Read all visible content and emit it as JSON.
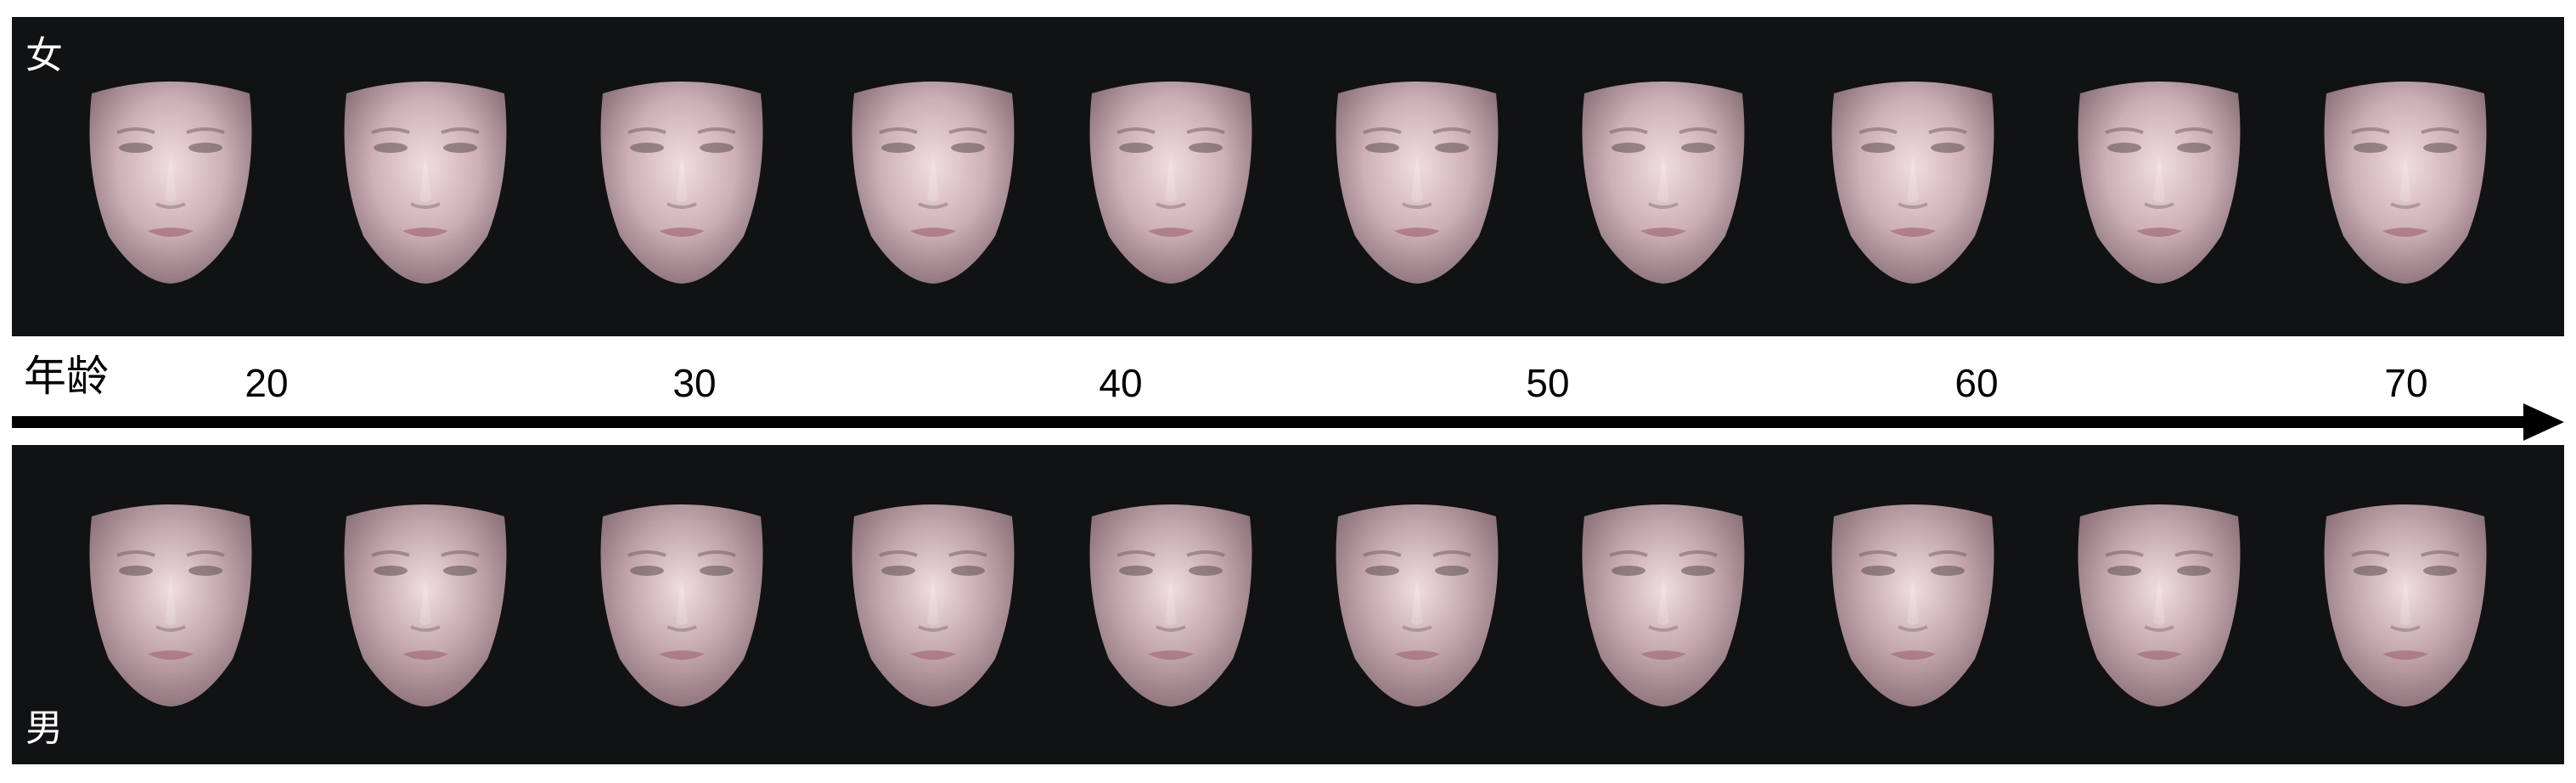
{
  "panels": {
    "female": {
      "label": "女",
      "face_count": 10
    },
    "male": {
      "label": "男",
      "face_count": 10
    }
  },
  "axis": {
    "title": "年龄",
    "ticks": [
      "20",
      "30",
      "40",
      "50",
      "60",
      "70"
    ]
  },
  "colors": {
    "panel_background": "#111214",
    "female_skin": "#cdb0b8",
    "male_skin": "#c2a6ac",
    "axis": "#000000"
  },
  "icons": {
    "face": "face-image",
    "arrow": "arrow-right-icon"
  }
}
